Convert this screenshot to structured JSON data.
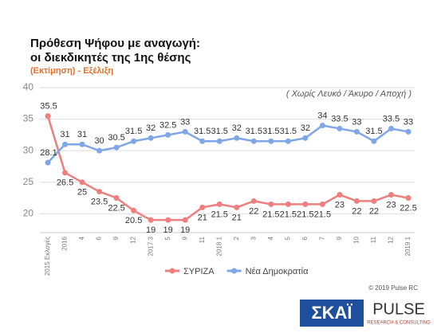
{
  "chart_data": {
    "type": "line",
    "title": [
      "Πρόθεση Ψήφου με αναγωγή:",
      "οι διεκδικητές της 1ης θέσης"
    ],
    "subtitle": "(Εκτίμηση) - Εξέλιξη",
    "annotation": "( Χωρίς Λευκό / Άκυρο / Αποχή )",
    "categories": [
      "2015 Εκλογές",
      "2016",
      "4",
      "6",
      "9",
      "12",
      "2017 3",
      "5",
      "9",
      "11",
      "2018 1",
      "2",
      "3",
      "4",
      "5",
      "6",
      "7",
      "9",
      "10",
      "11",
      "12",
      "2019 1"
    ],
    "series": [
      {
        "name": "ΣΥΡΙΖΑ",
        "color": "#ef7f7f",
        "values": [
          35.5,
          26.5,
          25,
          23.5,
          22.5,
          20.5,
          19,
          19,
          19,
          21,
          21.5,
          21,
          22,
          21.5,
          21.5,
          21.5,
          21.5,
          23,
          22,
          22,
          23,
          22.5
        ]
      },
      {
        "name": "Νέα Δημοκρατία",
        "color": "#7fa6e6",
        "values": [
          28.1,
          31,
          31,
          30,
          30.5,
          31.5,
          32,
          32.5,
          33,
          31.5,
          31.5,
          32,
          31.5,
          31.5,
          31.5,
          32,
          34,
          33.5,
          33,
          31.5,
          33.5,
          33
        ]
      }
    ],
    "ylim": [
      17,
      40
    ],
    "yticks": [
      20,
      25,
      30,
      35,
      40
    ],
    "grid": true,
    "legend": "bottom",
    "copyright": "© 2019 Pulse RC",
    "logos": [
      "ΣΚΑΪ",
      "PULSE",
      "RESEARCH & CONSULTING"
    ]
  }
}
